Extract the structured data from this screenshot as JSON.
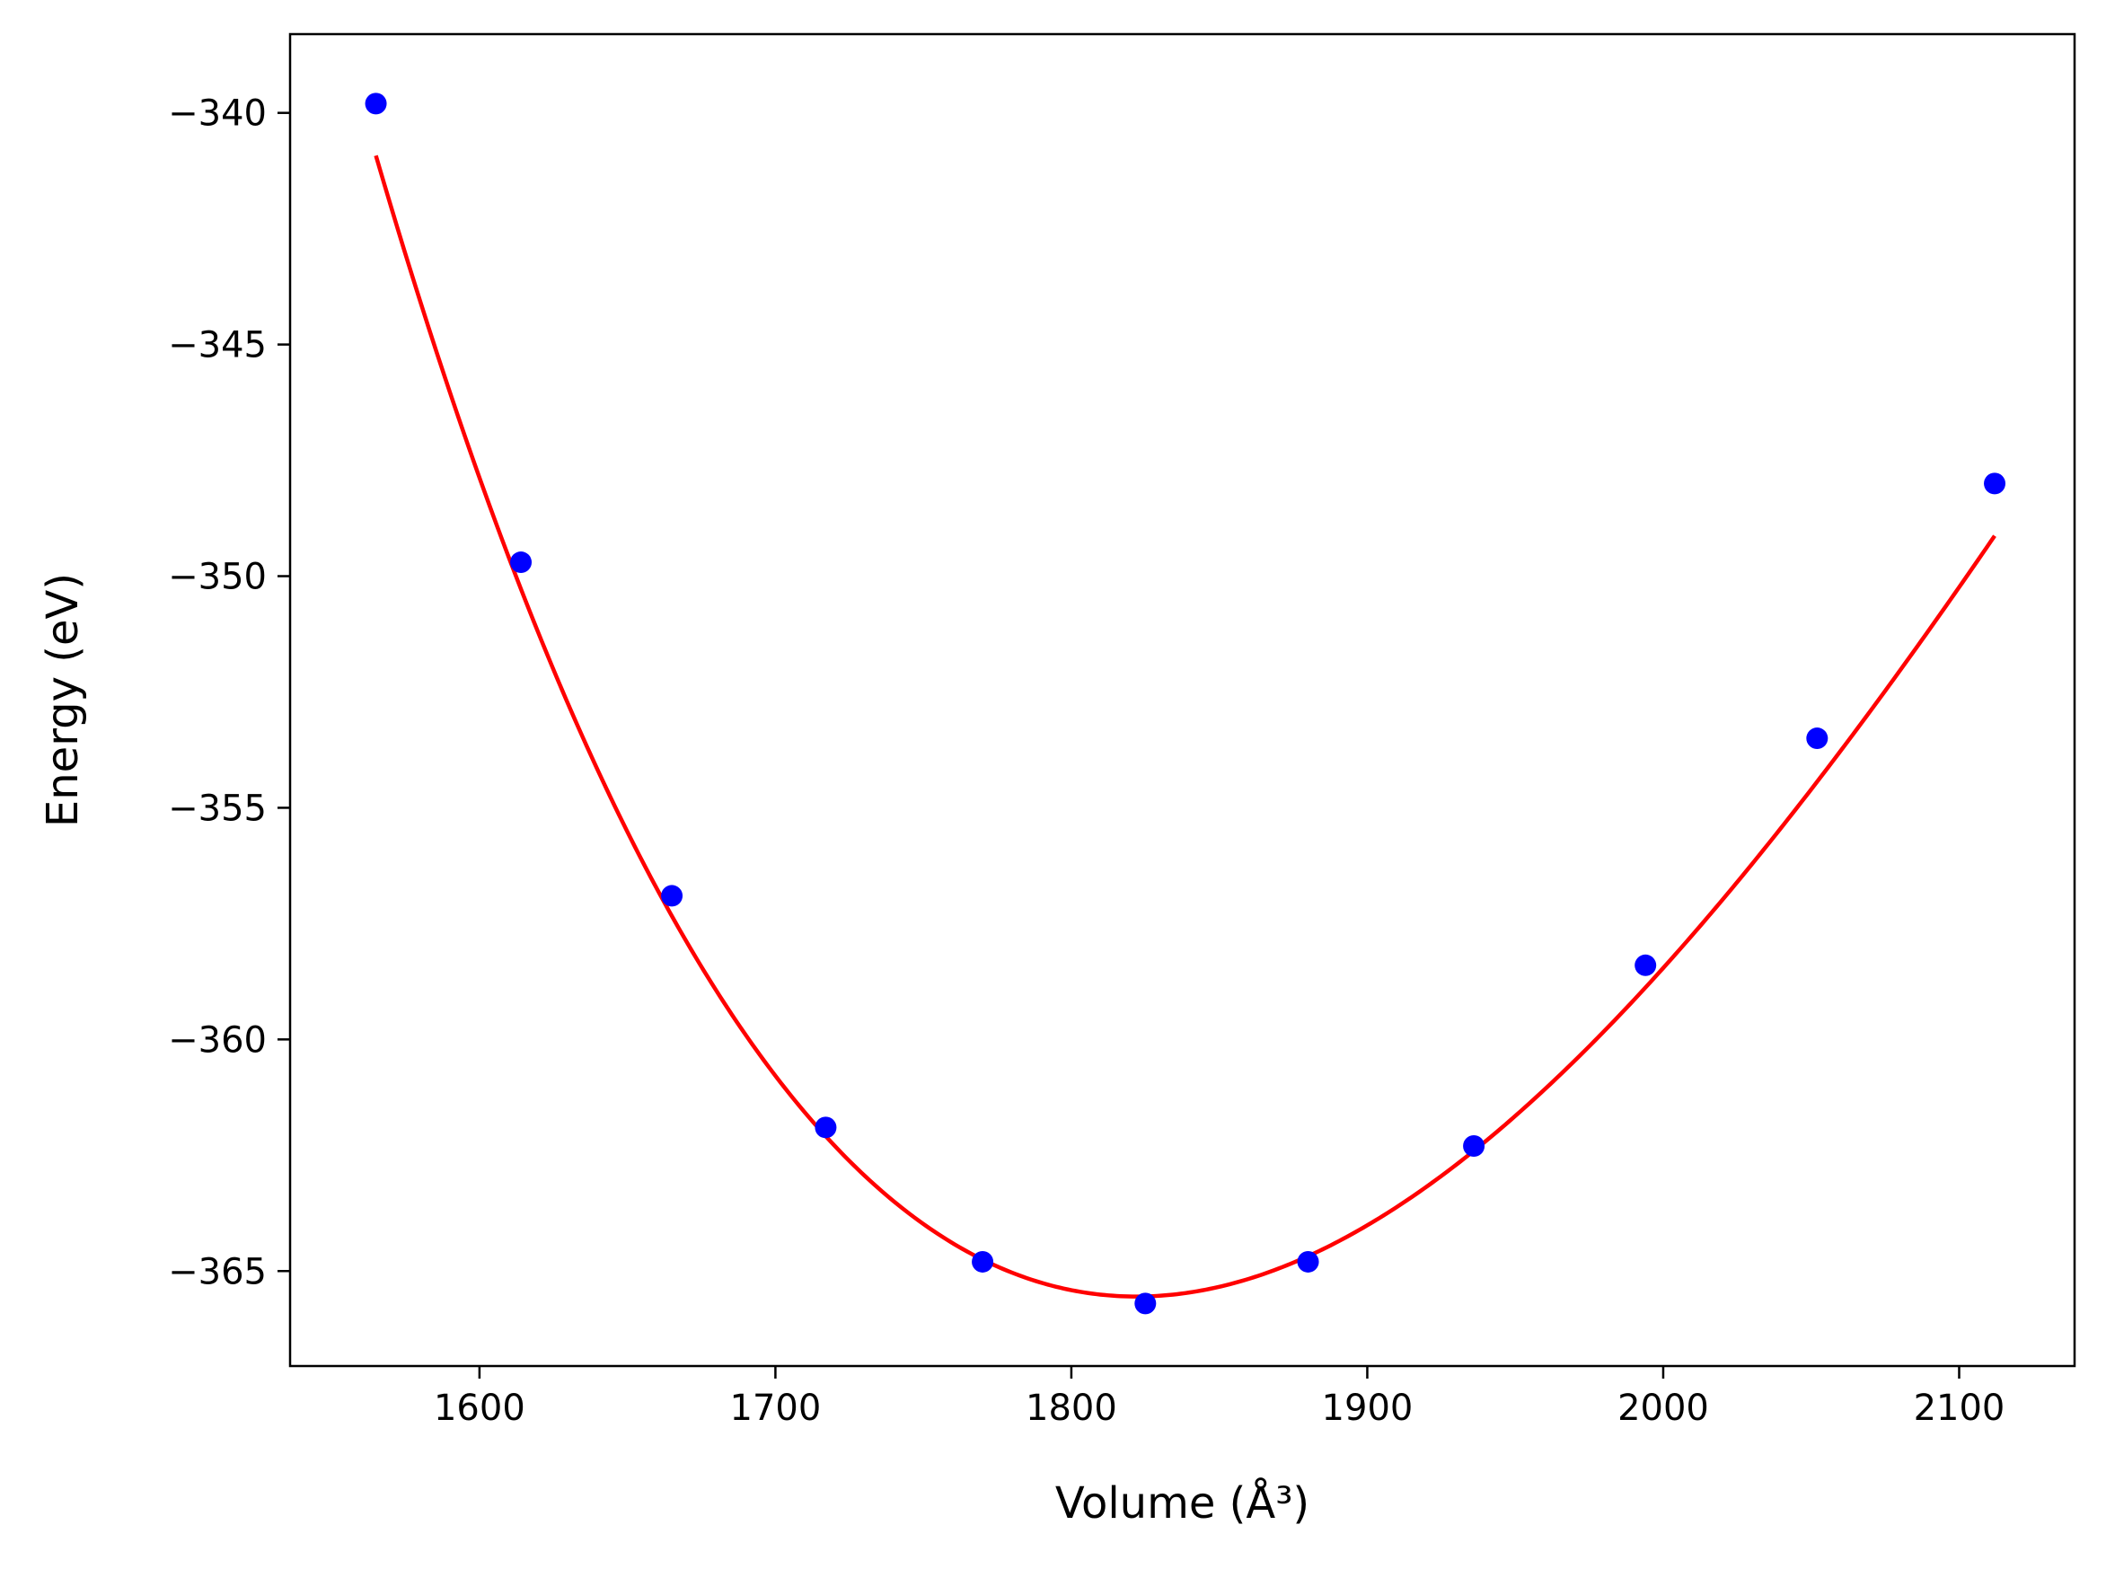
{
  "chart_data": {
    "type": "scatter",
    "title": "",
    "xlabel": "Volume (Å³)",
    "ylabel": "Energy (eV)",
    "xlim": [
      1536,
      2139
    ],
    "ylim": [
      -367.05,
      -338.3
    ],
    "x_ticks": [
      1600,
      1700,
      1800,
      1900,
      2000,
      2100
    ],
    "y_ticks": [
      -340,
      -345,
      -350,
      -355,
      -360,
      -365
    ],
    "x_tick_labels": [
      "1600",
      "1700",
      "1800",
      "1900",
      "2000",
      "2100"
    ],
    "y_tick_labels": [
      "−340",
      "−345",
      "−350",
      "−355",
      "−360",
      "−365"
    ],
    "grid": false,
    "series": [
      {
        "type": "scatter",
        "color": "#0000ff",
        "x": [
          1565,
          1614,
          1665,
          1717,
          1770,
          1825,
          1880,
          1936,
          1994,
          2052,
          2112
        ],
        "y": [
          -339.8,
          -349.7,
          -356.9,
          -361.9,
          -364.8,
          -365.7,
          -364.8,
          -362.3,
          -358.4,
          -353.5,
          -348.0
        ]
      },
      {
        "type": "line",
        "color": "#ff0000",
        "fit": "polynomial",
        "coefficients": [
          -365.55,
          0.0,
          0.0002775,
          -3.3e-07,
          1.6e-10
        ],
        "center": 1822,
        "x_range": [
          1565,
          2112
        ]
      }
    ]
  }
}
